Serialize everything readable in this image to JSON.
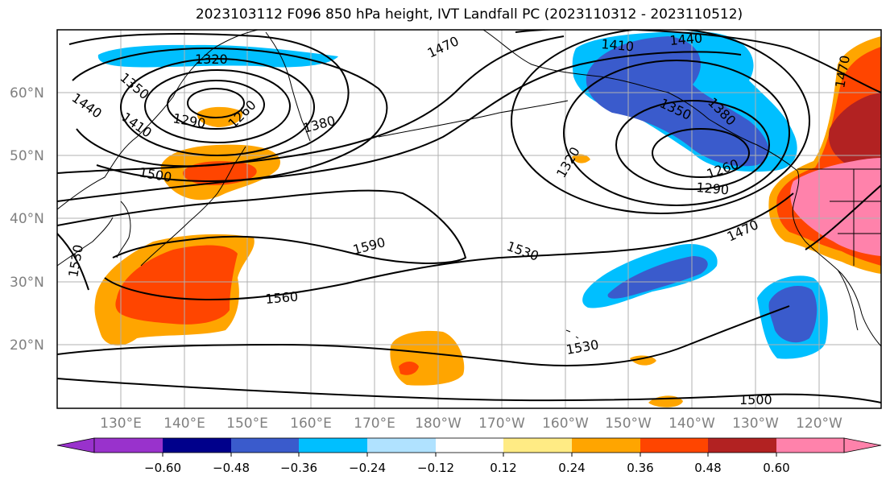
{
  "title": "2023103112 F096 850 hPa height, IVT Landfall PC (2023110312 - 2023110512)",
  "lat_labels": [
    "60°N",
    "50°N",
    "40°N",
    "30°N",
    "20°N"
  ],
  "lon_labels": [
    "130°E",
    "140°E",
    "150°E",
    "160°E",
    "170°E",
    "180°W",
    "170°W",
    "160°W",
    "150°W",
    "140°W",
    "130°W",
    "120°W"
  ],
  "colorbar": {
    "ticks": [
      "−0.60",
      "−0.48",
      "−0.36",
      "−0.24",
      "−0.12",
      "0.12",
      "0.24",
      "0.36",
      "0.48",
      "0.60"
    ],
    "colors": [
      "#9932cc",
      "#00008b",
      "#3a5bcc",
      "#00bfff",
      "#b0e2ff",
      "#ffffff",
      "#ffeb84",
      "#ffa500",
      "#ff4500",
      "#b22222",
      "#ff82ab"
    ]
  },
  "contour_labels": [
    "1320",
    "1350",
    "1440",
    "1410",
    "1290",
    "1260",
    "1470",
    "1380",
    "1500",
    "1530",
    "1410",
    "1440",
    "1350",
    "1380",
    "1320",
    "1260",
    "1290",
    "1470",
    "1590",
    "1530",
    "1560",
    "1530",
    "1500",
    "1470"
  ]
}
